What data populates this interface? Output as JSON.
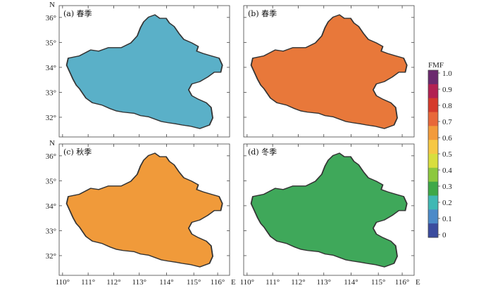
{
  "figure": {
    "panels": [
      {
        "label": "(a) 春季",
        "fill": "#5ab0c8"
      },
      {
        "label": "(b) 春季",
        "fill": "#e8783a"
      },
      {
        "label": "(c) 秋季",
        "fill": "#f09a3a"
      },
      {
        "label": "(d) 冬季",
        "fill": "#3fa85a"
      }
    ],
    "colorbar": {
      "title": "FMF",
      "ticks": [
        "1.0",
        "0.9",
        "0.8",
        "0.7",
        "0.6",
        "0.5",
        "0.4",
        "0.3",
        "0.2",
        "0.1",
        "0"
      ],
      "colors": [
        "#6b2a6e",
        "#b22252",
        "#d53a2c",
        "#e8683a",
        "#f29b3c",
        "#f6c844",
        "#d8de3e",
        "#8cc83e",
        "#3ea848",
        "#40b8b4",
        "#4c8ac8",
        "#3b4c9e"
      ]
    },
    "axes": {
      "lat_labels": [
        "36°",
        "35°",
        "34°",
        "33°",
        "32°"
      ],
      "lon_labels": [
        "110°",
        "111°",
        "112°",
        "113°",
        "114°",
        "115°",
        "116°"
      ],
      "north_label": "N",
      "east_label": "E"
    }
  }
}
